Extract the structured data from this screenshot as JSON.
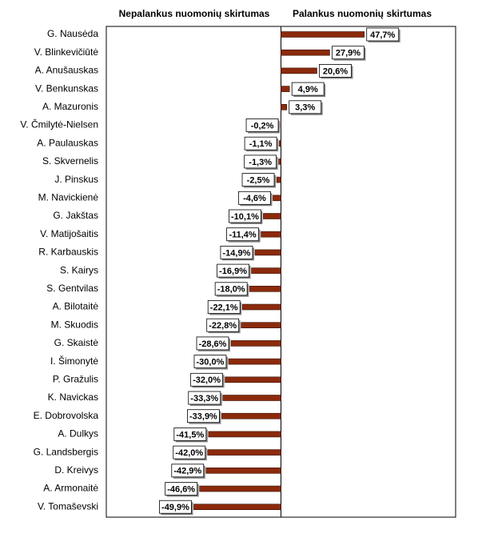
{
  "chart_data": {
    "type": "bar",
    "orientation": "horizontal",
    "headers": [
      "Nepalankus nuomonių skirtumas",
      "Palankus nuomonių skirtumas"
    ],
    "categories": [
      "G. Nausėda",
      "V. Blinkevičiūtė",
      "A. Anušauskas",
      "V. Benkunskas",
      "A. Mazuronis",
      "V. Čmilytė-Nielsen",
      "A. Paulauskas",
      "S. Skvernelis",
      "J. Pinskus",
      "M. Navickienė",
      "G. Jakštas",
      "V. Matijošaitis",
      "R. Karbauskis",
      "S. Kairys",
      "S. Gentvilas",
      "A. Bilotaitė",
      "M. Skuodis",
      "G. Skaistė",
      "I. Šimonytė",
      "P. Gražulis",
      "K. Navickas",
      "E. Dobrovolska",
      "A. Dulkys",
      "G. Landsbergis",
      "D. Kreivys",
      "A. Armonaitė",
      "V. Tomaševski"
    ],
    "values": [
      47.7,
      27.9,
      20.6,
      4.9,
      3.3,
      -0.2,
      -1.1,
      -1.3,
      -2.5,
      -4.6,
      -10.1,
      -11.4,
      -14.9,
      -16.9,
      -18.0,
      -22.1,
      -22.8,
      -28.6,
      -30.0,
      -32.0,
      -33.3,
      -33.9,
      -41.5,
      -42.0,
      -42.9,
      -46.6,
      -49.9
    ],
    "value_labels": [
      "47,7%",
      "27,9%",
      "20,6%",
      "4,9%",
      "3,3%",
      "-0,2%",
      "-1,1%",
      "-1,3%",
      "-2,5%",
      "-4,6%",
      "-10,1%",
      "-11,4%",
      "-14,9%",
      "-16,9%",
      "-18,0%",
      "-22,1%",
      "-22,8%",
      "-28,6%",
      "-30,0%",
      "-32,0%",
      "-33,3%",
      "-33,9%",
      "-41,5%",
      "-42,0%",
      "-42,9%",
      "-46,6%",
      "-49,9%"
    ],
    "color": "#8b2a0c",
    "xlim": [
      -100,
      100
    ]
  }
}
